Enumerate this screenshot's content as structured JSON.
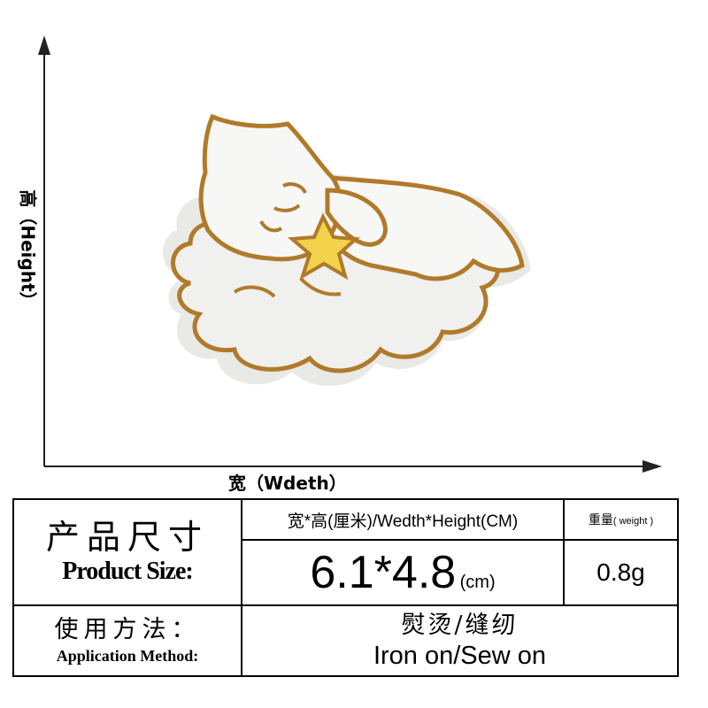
{
  "axes": {
    "height_label": "高（Height）",
    "width_label": "宽（Wdeth）"
  },
  "image": {
    "description_icon": "kitten-sleeping-on-cloud-embroidered-patch",
    "colors": {
      "outline": "#b07a2a",
      "fill": "#f4f4f2",
      "cloud": "#f0f0ee",
      "star": "#f2d24a"
    }
  },
  "table": {
    "product_size_cn": "产品尺寸",
    "product_size_en": "Product Size:",
    "size_header": "宽*高(厘米)/Wedth*Height(CM)",
    "weight_header_cn": "重量",
    "weight_header_en": "( weight )",
    "size_value": "6.1*4.8",
    "size_unit": "(cm)",
    "weight_value": "0.8g",
    "method_cn": "使用方法：",
    "method_en": "Application Method:",
    "method_value_cn": "熨烫/缝纫",
    "method_value_en": "Iron on/Sew on"
  }
}
